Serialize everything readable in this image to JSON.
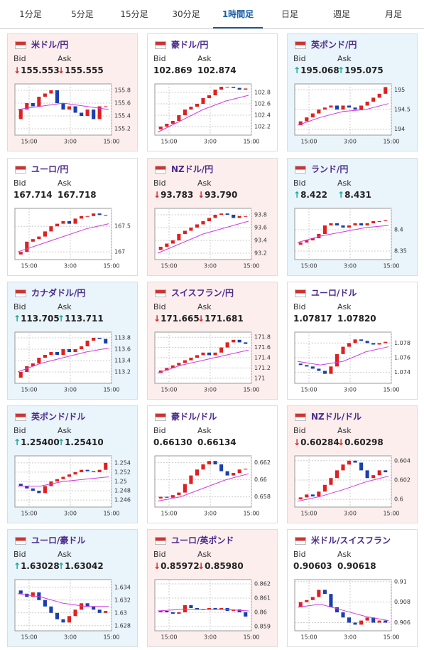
{
  "tabs": {
    "items": [
      "1分足",
      "5分足",
      "15分足",
      "30分足",
      "1時間足",
      "日足",
      "週足",
      "月足"
    ],
    "active": 4
  },
  "labels": {
    "bid": "Bid",
    "ask": "Ask"
  },
  "cards": [
    {
      "name": "米ドル/円",
      "trend": "down",
      "bid": "↓155.553",
      "ask": "↓155.555",
      "ylim": [
        155.1,
        155.9
      ],
      "yticks": [
        155.2,
        155.4,
        155.6,
        155.8
      ],
      "xlabels": [
        "15:00",
        "3:00",
        "15:00"
      ],
      "closes": [
        155.35,
        155.5,
        155.6,
        155.55,
        155.7,
        155.75,
        155.8,
        155.6,
        155.5,
        155.55,
        155.45,
        155.4,
        155.5,
        155.35,
        155.55,
        155.55
      ],
      "ma": [
        155.5,
        155.55,
        155.6,
        155.55,
        155.5
      ]
    },
    {
      "name": "豪ドル/円",
      "trend": "flat",
      "bid": "102.869",
      "ask": "102.874",
      "ylim": [
        102.05,
        102.95
      ],
      "yticks": [
        102.2,
        102.4,
        102.6,
        102.8
      ],
      "xlabels": [
        "15:00",
        "3:00",
        "15:00"
      ],
      "closes": [
        102.15,
        102.2,
        102.25,
        102.3,
        102.4,
        102.5,
        102.55,
        102.6,
        102.7,
        102.75,
        102.85,
        102.9,
        102.9,
        102.88,
        102.85,
        102.87
      ],
      "ma": [
        102.1,
        102.3,
        102.5,
        102.65,
        102.75
      ]
    },
    {
      "name": "英ポンド/円",
      "trend": "up",
      "bid": "↑195.068",
      "ask": "↑195.075",
      "ylim": [
        193.85,
        195.15
      ],
      "yticks": [
        194,
        194.5,
        195
      ],
      "xlabels": [
        "15:00",
        "3:00",
        "15:00"
      ],
      "closes": [
        194.1,
        194.2,
        194.3,
        194.4,
        194.5,
        194.55,
        194.6,
        194.5,
        194.6,
        194.55,
        194.5,
        194.6,
        194.7,
        194.8,
        194.9,
        195.07
      ],
      "ma": [
        194.1,
        194.3,
        194.45,
        194.5,
        194.65
      ]
    },
    {
      "name": "ユーロ/円",
      "trend": "flat",
      "bid": "167.714",
      "ask": "167.718",
      "ylim": [
        166.85,
        167.85
      ],
      "yticks": [
        167,
        167.5
      ],
      "xlabels": [
        "15:00",
        "3:00",
        "15:00"
      ],
      "closes": [
        166.95,
        167.0,
        167.2,
        167.25,
        167.3,
        167.4,
        167.5,
        167.55,
        167.6,
        167.55,
        167.65,
        167.7,
        167.7,
        167.75,
        167.72,
        167.71
      ],
      "ma": [
        167.0,
        167.15,
        167.3,
        167.45,
        167.55
      ]
    },
    {
      "name": "NZドル/円",
      "trend": "down",
      "bid": "↓93.783",
      "ask": "↓93.790",
      "ylim": [
        93.1,
        93.9
      ],
      "yticks": [
        93.2,
        93.4,
        93.6,
        93.8
      ],
      "xlabels": [
        "15:00",
        "3:00",
        "15:00"
      ],
      "closes": [
        93.25,
        93.3,
        93.35,
        93.4,
        93.5,
        93.55,
        93.6,
        93.65,
        93.7,
        93.75,
        93.8,
        93.82,
        93.8,
        93.75,
        93.78,
        93.78
      ],
      "ma": [
        93.2,
        93.35,
        93.5,
        93.6,
        93.7
      ]
    },
    {
      "name": "ランド/円",
      "trend": "up",
      "bid": "↑8.422",
      "ask": "↑8.431",
      "ylim": [
        8.33,
        8.45
      ],
      "yticks": [
        8.35,
        8.4
      ],
      "xlabels": [
        "15:00",
        "3:00",
        "15:00"
      ],
      "closes": [
        8.365,
        8.37,
        8.375,
        8.38,
        8.39,
        8.41,
        8.415,
        8.41,
        8.405,
        8.41,
        8.415,
        8.41,
        8.415,
        8.42,
        8.42,
        8.422
      ],
      "ma": [
        8.37,
        8.385,
        8.395,
        8.405,
        8.41
      ]
    },
    {
      "name": "カナダドル/円",
      "trend": "up",
      "bid": "↑113.705",
      "ask": "↑113.711",
      "ylim": [
        113.0,
        113.9
      ],
      "yticks": [
        113.2,
        113.4,
        113.6,
        113.8
      ],
      "xlabels": [
        "15:00",
        "3:00",
        "15:00"
      ],
      "closes": [
        113.1,
        113.2,
        113.3,
        113.35,
        113.45,
        113.5,
        113.55,
        113.5,
        113.6,
        113.55,
        113.6,
        113.65,
        113.75,
        113.8,
        113.78,
        113.7
      ],
      "ma": [
        113.2,
        113.35,
        113.45,
        113.55,
        113.62
      ]
    },
    {
      "name": "スイスフラン/円",
      "trend": "down",
      "bid": "↓171.665",
      "ask": "↓171.681",
      "ylim": [
        170.9,
        171.9
      ],
      "yticks": [
        171,
        171.2,
        171.4,
        171.6,
        171.8
      ],
      "xlabels": [
        "15:00",
        "3:00",
        "15:00"
      ],
      "closes": [
        171.1,
        171.15,
        171.2,
        171.25,
        171.3,
        171.35,
        171.4,
        171.45,
        171.5,
        171.45,
        171.5,
        171.6,
        171.7,
        171.75,
        171.7,
        171.67
      ],
      "ma": [
        171.1,
        171.25,
        171.35,
        171.45,
        171.55
      ]
    },
    {
      "name": "ユーロ/ドル",
      "trend": "flat",
      "bid": "1.07817",
      "ask": "1.07820",
      "ylim": [
        1.0725,
        1.0795
      ],
      "yticks": [
        1.074,
        1.076,
        1.078
      ],
      "xlabels": [
        "15:00",
        "3:00",
        "15:00"
      ],
      "closes": [
        1.0752,
        1.075,
        1.0748,
        1.0745,
        1.0742,
        1.0738,
        1.0748,
        1.0765,
        1.0775,
        1.078,
        1.0785,
        1.0783,
        1.078,
        1.0778,
        1.078,
        1.07817
      ],
      "ma": [
        1.0755,
        1.075,
        1.0755,
        1.0768,
        1.0775
      ]
    },
    {
      "name": "英ポンド/ドル",
      "trend": "up",
      "bid": "↑1.25400",
      "ask": "↑1.25410",
      "ylim": [
        1.2445,
        1.2555
      ],
      "yticks": [
        1.246,
        1.248,
        1.25,
        1.252,
        1.254
      ],
      "xlabels": [
        "15:00",
        "3:00",
        "15:00"
      ],
      "closes": [
        1.2495,
        1.249,
        1.2485,
        1.248,
        1.2475,
        1.249,
        1.25,
        1.2505,
        1.251,
        1.2515,
        1.252,
        1.2525,
        1.2522,
        1.252,
        1.2525,
        1.254
      ],
      "ma": [
        1.249,
        1.249,
        1.25,
        1.2505,
        1.251
      ]
    },
    {
      "name": "豪ドル/ドル",
      "trend": "flat",
      "bid": "0.66130",
      "ask": "0.66134",
      "ylim": [
        0.6568,
        0.6628
      ],
      "yticks": [
        0.658,
        0.66,
        0.662
      ],
      "xlabels": [
        "15:00",
        "3:00",
        "15:00"
      ],
      "closes": [
        0.6578,
        0.658,
        0.6579,
        0.6582,
        0.6585,
        0.6595,
        0.6605,
        0.6612,
        0.6618,
        0.6622,
        0.6618,
        0.661,
        0.6605,
        0.6608,
        0.6612,
        0.6613
      ],
      "ma": [
        0.6575,
        0.658,
        0.659,
        0.66,
        0.6607
      ]
    },
    {
      "name": "NZドル/ドル",
      "trend": "down",
      "bid": "↓0.60284",
      "ask": "↓0.60298",
      "ylim": [
        0.5992,
        0.6045
      ],
      "yticks": [
        0.6,
        0.602,
        0.604
      ],
      "xlabels": [
        "15:00",
        "3:00",
        "15:00"
      ],
      "closes": [
        0.6,
        0.6002,
        0.6005,
        0.6003,
        0.6008,
        0.6015,
        0.6022,
        0.603,
        0.6036,
        0.604,
        0.6038,
        0.603,
        0.6022,
        0.6025,
        0.603,
        0.6028
      ],
      "ma": [
        0.5998,
        0.6003,
        0.601,
        0.6018,
        0.6024
      ]
    },
    {
      "name": "ユーロ/豪ドル",
      "trend": "up",
      "bid": "↑1.63028",
      "ask": "↑1.63042",
      "ylim": [
        1.6272,
        1.6352
      ],
      "yticks": [
        1.628,
        1.63,
        1.632,
        1.634
      ],
      "xlabels": [
        "15:00",
        "3:00",
        "15:00"
      ],
      "closes": [
        1.6335,
        1.633,
        1.6325,
        1.6332,
        1.632,
        1.631,
        1.63,
        1.629,
        1.6285,
        1.6295,
        1.6305,
        1.6315,
        1.631,
        1.6305,
        1.63,
        1.6303
      ],
      "ma": [
        1.633,
        1.6325,
        1.6315,
        1.631,
        1.631
      ]
    },
    {
      "name": "ユーロ/英ポンド",
      "trend": "down",
      "bid": "↓0.85972",
      "ask": "↓0.85980",
      "ylim": [
        0.8587,
        0.8623
      ],
      "yticks": [
        0.859,
        0.86,
        0.861,
        0.862
      ],
      "xlabels": [
        "15:00",
        "3:00",
        "15:00"
      ],
      "closes": [
        0.86,
        0.8601,
        0.86,
        0.8599,
        0.86,
        0.8605,
        0.8603,
        0.8602,
        0.8602,
        0.8603,
        0.8602,
        0.8603,
        0.8601,
        0.8602,
        0.86,
        0.8597
      ],
      "ma": [
        0.8601,
        0.8602,
        0.8602,
        0.8602,
        0.8601
      ]
    },
    {
      "name": "米ドル/スイスフラン",
      "trend": "flat",
      "bid": "0.90603",
      "ask": "0.90618",
      "ylim": [
        0.9052,
        0.9102
      ],
      "yticks": [
        0.906,
        0.908,
        0.91
      ],
      "xlabels": [
        "15:00",
        "3:00",
        "15:00"
      ],
      "closes": [
        0.9075,
        0.908,
        0.9082,
        0.9085,
        0.9092,
        0.9088,
        0.9075,
        0.907,
        0.9065,
        0.906,
        0.9058,
        0.9062,
        0.9065,
        0.906,
        0.9062,
        0.906
      ],
      "ma": [
        0.9075,
        0.9078,
        0.9072,
        0.9066,
        0.9062
      ]
    }
  ]
}
